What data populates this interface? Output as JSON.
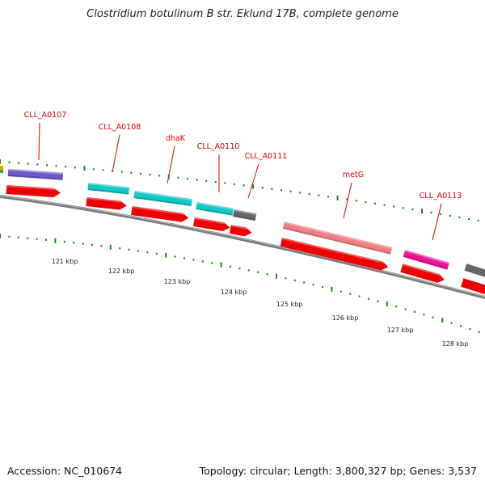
{
  "title": "Clostridium botulinum B str. Eklund 17B, complete genome",
  "footer": {
    "accession": "Accession: NC_010674",
    "summary": "Topology: circular; Length: 3,800,327 bp; Genes: 3,537"
  },
  "colors": {
    "cds": "#ee0000",
    "label": "#e00000",
    "tick": "#1a8a1a",
    "backbone": "#7a7a7a",
    "purple": "#6a5acd",
    "cyan": "#12c8c8",
    "gray": "#666666",
    "salmon": "#f08080",
    "magenta": "#ee1199"
  },
  "genes": [
    {
      "name": "CLL_A0107",
      "color": "purple"
    },
    {
      "name": "CLL_A0108",
      "color": "cyan"
    },
    {
      "name": "dhaK",
      "color": "cyan"
    },
    {
      "name": "CLL_A0110",
      "color": "cyan"
    },
    {
      "name": "CLL_A0111",
      "color": "gray"
    },
    {
      "name": "metG",
      "color": "salmon"
    },
    {
      "name": "CLL_A0113",
      "color": "magenta"
    }
  ],
  "scale_labels": [
    "121 kbp",
    "122 kbp",
    "123 kbp",
    "124 kbp",
    "125 kbp",
    "126 kbp",
    "127 kbp",
    "128 kbp"
  ]
}
